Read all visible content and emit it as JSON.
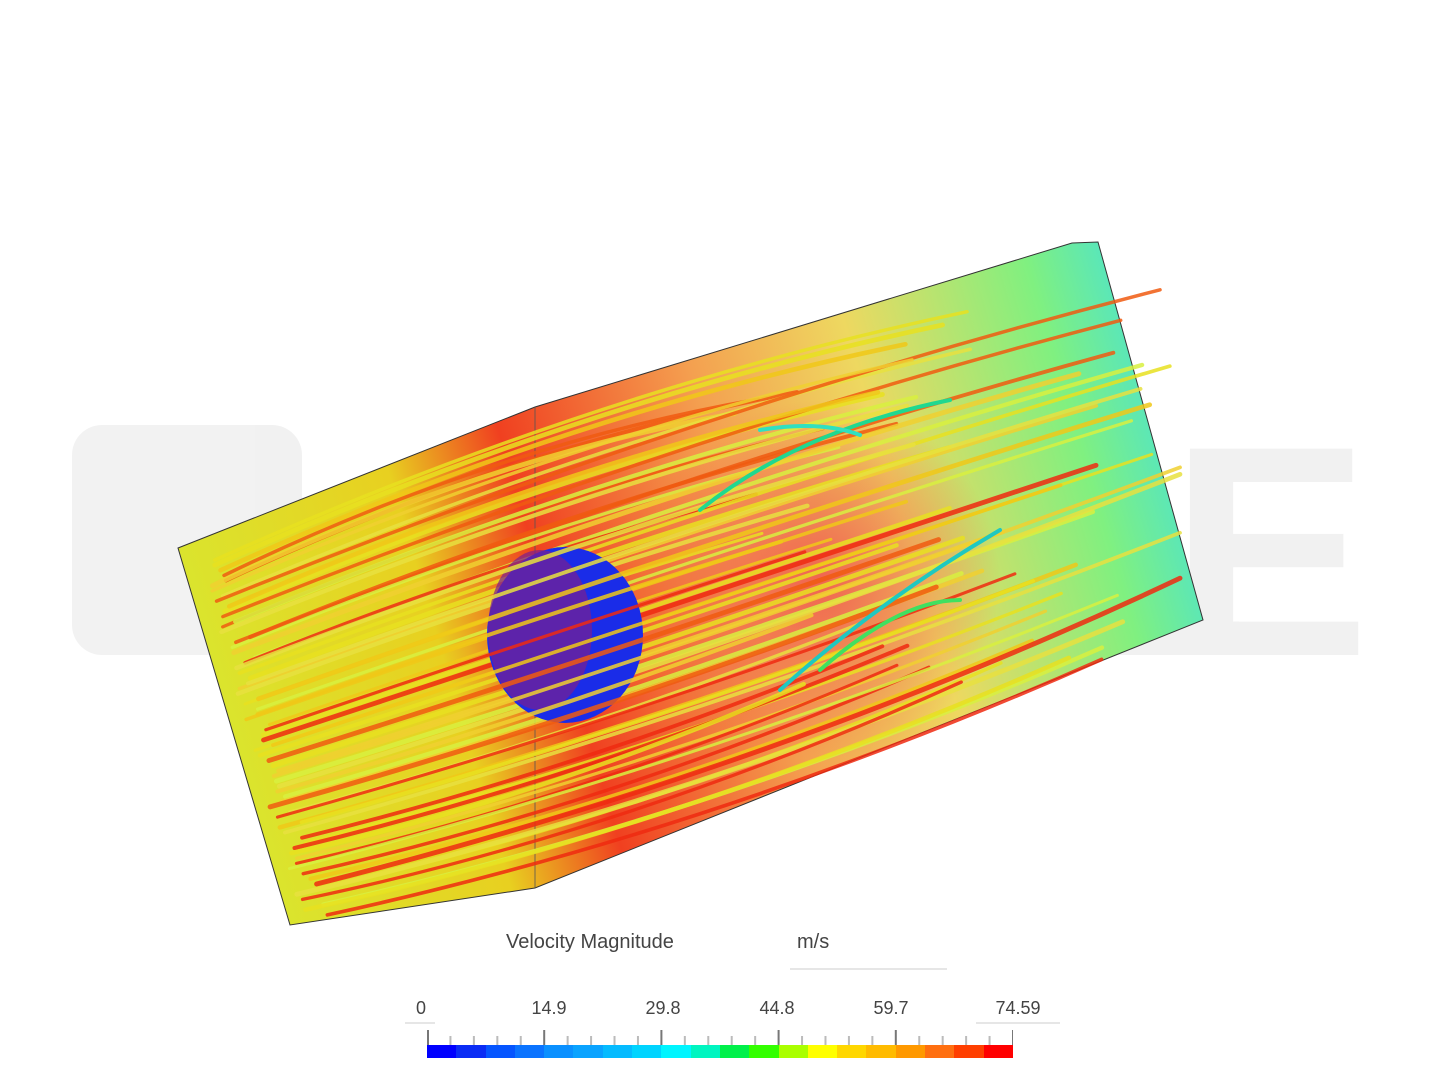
{
  "watermark": "SIMSCALE",
  "legend": {
    "title": "Velocity Magnitude",
    "unit": "m/s",
    "min": 0,
    "max": 74.59,
    "tick_labels": [
      "0",
      "14.9",
      "29.8",
      "44.8",
      "59.7",
      "74.59"
    ],
    "colors": [
      "#0000ff",
      "#0a2cf5",
      "#0555ff",
      "#0a73ff",
      "#0a90ff",
      "#0aa3ff",
      "#05bbff",
      "#00d4ff",
      "#00f5ff",
      "#00f5c0",
      "#00f04a",
      "#33ff00",
      "#aaff00",
      "#ffff00",
      "#ffd700",
      "#ffbb00",
      "#ff9900",
      "#ff6f10",
      "#ff3f00",
      "#ff0000"
    ]
  }
}
